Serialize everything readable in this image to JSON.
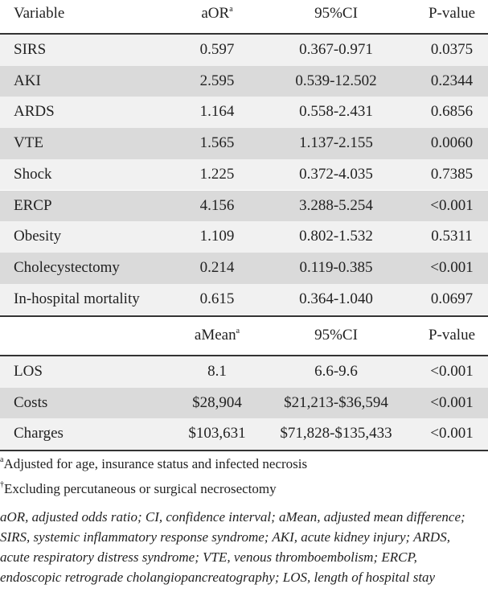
{
  "table1": {
    "header": [
      {
        "text": "Variable"
      },
      {
        "text": "aOR",
        "sup": "a"
      },
      {
        "text": "95%CI"
      },
      {
        "text": "P-value"
      }
    ],
    "rows": [
      [
        "SIRS",
        "0.597",
        "0.367-0.971",
        "0.0375"
      ],
      [
        "AKI",
        "2.595",
        "0.539-12.502",
        "0.2344"
      ],
      [
        "ARDS",
        "1.164",
        "0.558-2.431",
        "0.6856"
      ],
      [
        "VTE",
        "1.565",
        "1.137-2.155",
        "0.0060"
      ],
      [
        "Shock",
        "1.225",
        "0.372-4.035",
        "0.7385"
      ],
      [
        "ERCP",
        "4.156",
        "3.288-5.254",
        "<0.001"
      ],
      [
        "Obesity",
        "1.109",
        "0.802-1.532",
        "0.5311"
      ],
      [
        "Cholecystectomy",
        "0.214",
        "0.119-0.385",
        "<0.001"
      ],
      [
        "In-hospital mortality",
        "0.615",
        "0.364-1.040",
        "0.0697"
      ]
    ]
  },
  "table2": {
    "header": [
      {
        "text": "aMean",
        "sup": "a"
      },
      {
        "text": "95%CI"
      },
      {
        "text": "P-value"
      }
    ],
    "rows": [
      [
        "LOS",
        "8.1",
        "6.6-9.6",
        "<0.001"
      ],
      [
        "Costs",
        "$28,904",
        "$21,213-$36,594",
        "<0.001"
      ],
      [
        "Charges",
        "$103,631",
        "$71,828-$135,433",
        "<0.001"
      ]
    ]
  },
  "footnotes": [
    {
      "mark": "a",
      "text": "Adjusted for age, insurance status and infected necrosis"
    },
    {
      "mark": "†",
      "text": "Excluding percutaneous or surgical necrosectomy"
    }
  ],
  "abbreviations": "aOR, adjusted odds ratio; CI, confidence interval; aMean, adjusted mean difference; SIRS, systemic inflammatory response syndrome; AKI, acute kidney injury; ARDS, acute respiratory distress syndrome; VTE, venous thromboembolism; ERCP, endoscopic retrograde cholangiopancreatography; LOS, length of hospital stay"
}
